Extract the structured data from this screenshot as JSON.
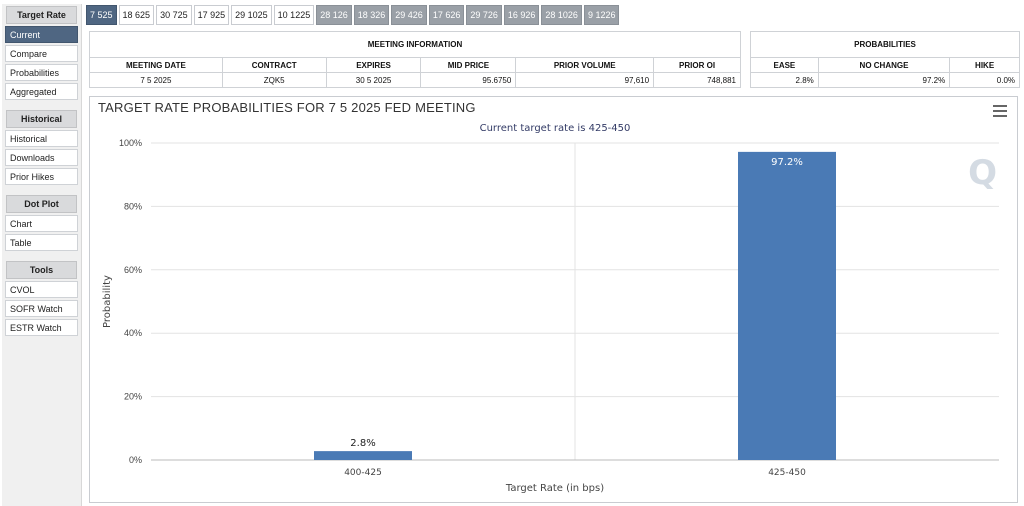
{
  "sidebar": {
    "sections": [
      {
        "heading": "Target Rate",
        "items": [
          {
            "label": "Current",
            "active": true
          },
          {
            "label": "Compare"
          },
          {
            "label": "Probabilities"
          },
          {
            "label": "Aggregated"
          }
        ]
      },
      {
        "heading": "Historical",
        "items": [
          {
            "label": "Historical"
          },
          {
            "label": "Downloads"
          },
          {
            "label": "Prior Hikes"
          }
        ]
      },
      {
        "heading": "Dot Plot",
        "items": [
          {
            "label": "Chart"
          },
          {
            "label": "Table"
          }
        ]
      },
      {
        "heading": "Tools",
        "items": [
          {
            "label": "CVOL"
          },
          {
            "label": "SOFR Watch"
          },
          {
            "label": "ESTR Watch"
          }
        ]
      }
    ]
  },
  "tabs": [
    {
      "label": "7 525",
      "state": "selected"
    },
    {
      "label": "18 625",
      "state": "normal"
    },
    {
      "label": "30 725",
      "state": "normal"
    },
    {
      "label": "17 925",
      "state": "normal"
    },
    {
      "label": "29 1025",
      "state": "normal"
    },
    {
      "label": "10 1225",
      "state": "normal"
    },
    {
      "label": "28 126",
      "state": "gray"
    },
    {
      "label": "18 326",
      "state": "gray"
    },
    {
      "label": "29 426",
      "state": "gray"
    },
    {
      "label": "17 626",
      "state": "gray"
    },
    {
      "label": "29 726",
      "state": "gray"
    },
    {
      "label": "16 926",
      "state": "gray"
    },
    {
      "label": "28 1026",
      "state": "gray"
    },
    {
      "label": "9 1226",
      "state": "gray"
    }
  ],
  "meeting_info": {
    "group_title": "MEETING INFORMATION",
    "headers": [
      "MEETING DATE",
      "CONTRACT",
      "EXPIRES",
      "MID PRICE",
      "PRIOR VOLUME",
      "PRIOR OI"
    ],
    "values": [
      "7 5 2025",
      "ZQK5",
      "30 5 2025",
      "95.6750",
      "97,610",
      "748,881"
    ]
  },
  "probabilities": {
    "group_title": "PROBABILITIES",
    "headers": [
      "EASE",
      "NO CHANGE",
      "HIKE"
    ],
    "values": [
      "2.8%",
      "97.2%",
      "0.0%"
    ]
  },
  "chart_data": {
    "type": "bar",
    "title": "TARGET RATE PROBABILITIES FOR 7 5 2025 FED MEETING",
    "subtitle": "Current target rate is 425-450",
    "xlabel": "Target Rate (in bps)",
    "ylabel": "Probability",
    "categories": [
      "400-425",
      "425-450"
    ],
    "values": [
      2.8,
      97.2
    ],
    "data_labels": [
      "2.8%",
      "97.2%"
    ],
    "ylim": [
      0,
      100
    ],
    "yticks": [
      "0%",
      "20%",
      "40%",
      "60%",
      "80%",
      "100%"
    ],
    "ytick_values": [
      0,
      20,
      40,
      60,
      80,
      100
    ],
    "bar_color": "#4a7ab5",
    "grid": true
  },
  "watermark": "Q"
}
